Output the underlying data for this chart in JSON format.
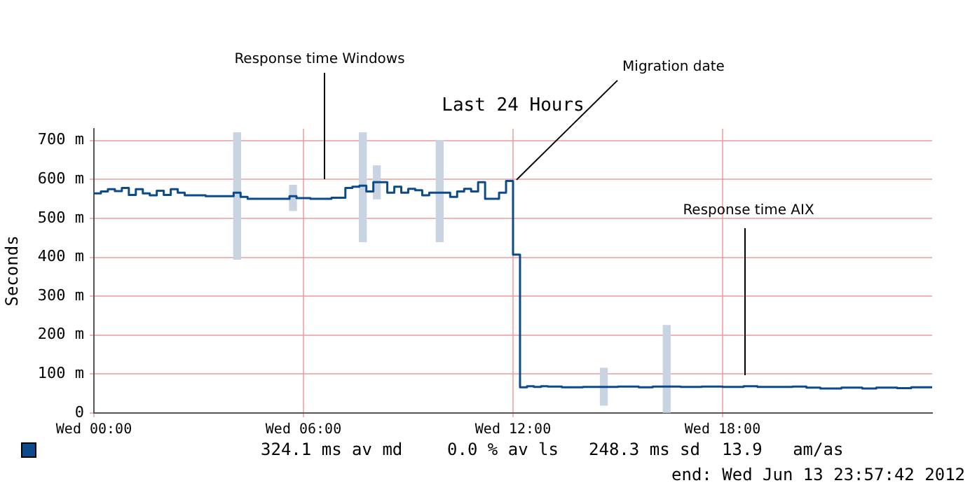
{
  "chart_data": {
    "type": "step",
    "title": "Last 24 Hours",
    "ylabel": "Seconds",
    "xlim": [
      "2012-06-13T00:00",
      "2012-06-14T00:00"
    ],
    "xticks": [
      {
        "value": "2012-06-13T00:00",
        "label": "Wed 00:00"
      },
      {
        "value": "2012-06-13T06:00",
        "label": "Wed 06:00"
      },
      {
        "value": "2012-06-13T12:00",
        "label": "Wed 12:00"
      },
      {
        "value": "2012-06-13T18:00",
        "label": "Wed 18:00"
      }
    ],
    "ylim": [
      0,
      730
    ],
    "yticks": [
      0,
      {
        "value": 100,
        "label": "100 m"
      },
      {
        "value": 200,
        "label": "200 m"
      },
      {
        "value": 300,
        "label": "300 m"
      },
      {
        "value": 400,
        "label": "400 m"
      },
      {
        "value": 500,
        "label": "500 m"
      },
      {
        "value": 600,
        "label": "600 m"
      },
      {
        "value": 700,
        "label": "700 m"
      }
    ],
    "grid": true,
    "legend": false,
    "series": [
      {
        "type": "step",
        "color": "#0b4a8b",
        "x": [
          "2012-06-13T00:00",
          "2012-06-13T00:12",
          "2012-06-13T00:24",
          "2012-06-13T00:36",
          "2012-06-13T00:48",
          "2012-06-13T01:00",
          "2012-06-13T01:12",
          "2012-06-13T01:24",
          "2012-06-13T01:36",
          "2012-06-13T01:48",
          "2012-06-13T02:00",
          "2012-06-13T02:12",
          "2012-06-13T02:24",
          "2012-06-13T02:36",
          "2012-06-13T03:12",
          "2012-06-13T04:00",
          "2012-06-13T04:12",
          "2012-06-13T04:24",
          "2012-06-13T05:36",
          "2012-06-13T05:48",
          "2012-06-13T06:12",
          "2012-06-13T06:48",
          "2012-06-13T07:12",
          "2012-06-13T07:24",
          "2012-06-13T07:36",
          "2012-06-13T07:48",
          "2012-06-13T08:00",
          "2012-06-13T08:24",
          "2012-06-13T08:36",
          "2012-06-13T08:48",
          "2012-06-13T09:00",
          "2012-06-13T09:12",
          "2012-06-13T09:24",
          "2012-06-13T09:36",
          "2012-06-13T10:12",
          "2012-06-13T10:24",
          "2012-06-13T10:36",
          "2012-06-13T10:48",
          "2012-06-13T11:00",
          "2012-06-13T11:12",
          "2012-06-13T11:36",
          "2012-06-13T11:48",
          "2012-06-13T12:00",
          "2012-06-13T12:12",
          "2012-06-13T12:24",
          "2012-06-13T12:36",
          "2012-06-13T12:48",
          "2012-06-13T13:00",
          "2012-06-13T13:24",
          "2012-06-13T14:00",
          "2012-06-13T15:00",
          "2012-06-13T15:36",
          "2012-06-13T16:00",
          "2012-06-13T16:48",
          "2012-06-13T17:24",
          "2012-06-13T18:00",
          "2012-06-13T18:36",
          "2012-06-13T19:00",
          "2012-06-13T20:00",
          "2012-06-13T20:24",
          "2012-06-13T20:48",
          "2012-06-13T21:24",
          "2012-06-13T22:00",
          "2012-06-13T22:24",
          "2012-06-13T23:00",
          "2012-06-13T23:24",
          "2012-06-14T00:00"
        ],
        "values": [
          564,
          569,
          575,
          570,
          578,
          560,
          575,
          564,
          559,
          571,
          560,
          575,
          566,
          559,
          557,
          566,
          555,
          550,
          557,
          552,
          550,
          553,
          578,
          581,
          584,
          569,
          593,
          566,
          581,
          566,
          576,
          572,
          559,
          566,
          555,
          569,
          576,
          569,
          593,
          550,
          566,
          596,
          407,
          66,
          69,
          67,
          69,
          68,
          66,
          67,
          68,
          66,
          68,
          67,
          68,
          67,
          69,
          67,
          68,
          65,
          63,
          65,
          63,
          65,
          64,
          66,
          66
        ]
      },
      {
        "type": "bar",
        "color": "#c8d4e2",
        "x": [
          "2012-06-13T04:06",
          "2012-06-13T05:42",
          "2012-06-13T07:42",
          "2012-06-13T08:06",
          "2012-06-13T09:54",
          "2012-06-13T14:36",
          "2012-06-13T16:24"
        ],
        "base": [
          395,
          520,
          440,
          550,
          440,
          20,
          0
        ],
        "values": [
          325,
          65,
          280,
          85,
          260,
          95,
          225
        ]
      }
    ],
    "annotations": [
      "Response time Windows",
      {
        "text": "Migration date",
        "x": "2012-06-13T12:06",
        "y": 599
      },
      "Response time AIX",
      "324.1 ms av md",
      "0.0 % av ls",
      "248.3 ms sd",
      "13.9   am/as",
      "end: Wed Jun 13 23:57:42 2012"
    ]
  }
}
